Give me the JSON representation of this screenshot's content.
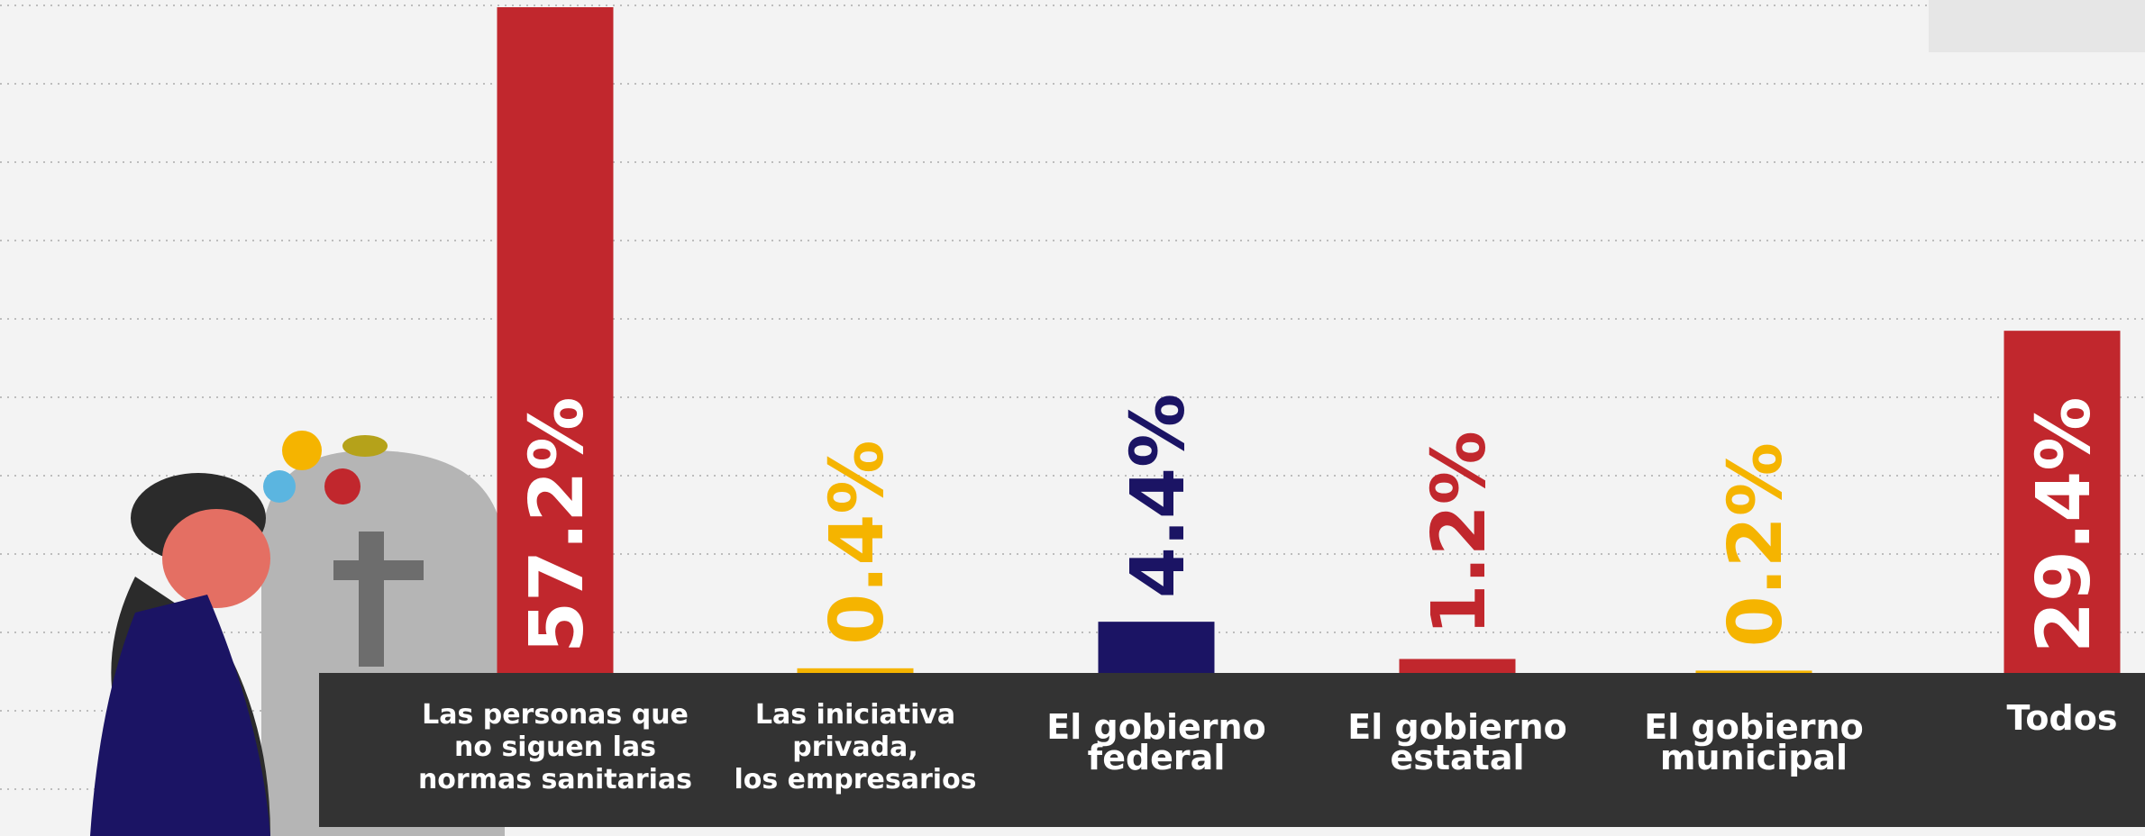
{
  "chart_data": {
    "type": "bar",
    "categories": [
      "Las personas que\nno siguen las\nnormas sanitarias",
      "Las iniciativa\nprivada,\nlos empresarios",
      "El gobierno\nfederal",
      "El gobierno\nestatal",
      "El gobierno\nmunicipal",
      "Todos"
    ],
    "values": [
      57.2,
      0.4,
      4.4,
      1.2,
      0.2,
      29.4
    ],
    "value_labels": [
      "57.2%",
      "0.4%",
      "4.4%",
      "1.2%",
      "0.2%",
      "29.4%"
    ],
    "colors": [
      "#c1272d",
      "#f5b400",
      "#1b1464",
      "#c1272d",
      "#f5b400",
      "#c1272d"
    ]
  }
}
